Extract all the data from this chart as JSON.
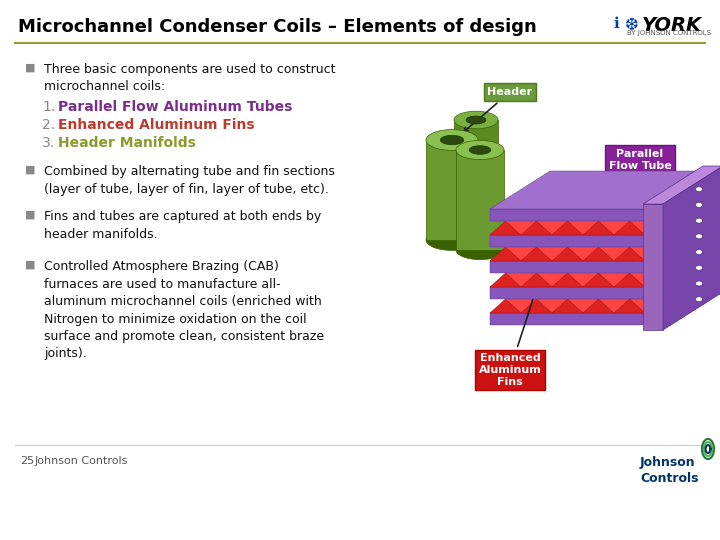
{
  "title": "Microchannel Condenser Coils – Elements of design",
  "title_fontsize": 13,
  "title_color": "#000000",
  "separator_color": "#9B9B3A",
  "background_color": "#FFFFFF",
  "bullet_color": "#888888",
  "bullet_char": "■",
  "bullet1": "Three basic components are used to construct\nmicrochannel coils:",
  "numbered_items": [
    {
      "num": "1.",
      "text": "Parallel Flow Aluminum Tubes",
      "color": "#7B2D8B"
    },
    {
      "num": "2.",
      "text": "Enhanced Aluminum Fins",
      "color": "#C0392B"
    },
    {
      "num": "3.",
      "text": "Header Manifolds",
      "color": "#8B9B2A"
    }
  ],
  "bullet2": "Combined by alternating tube and fin sections\n(layer of tube, layer of fin, layer of tube, etc).",
  "bullet3": "Fins and tubes are captured at both ends by\nheader manifolds.",
  "bullet4": "Controlled Atmosphere Brazing (CAB)\nfurnaces are used to manufacture all-\naluminum microchannel coils (enriched with\nNitrogen to minimize oxidation on the coil\nsurface and promote clean, consistent braze\njoints).",
  "footer_num": "25",
  "footer_text": "Johnson Controls",
  "footer_color": "#555555",
  "label_header_bg": "#6A9A4C",
  "label_parallel_bg": "#8B2D8B",
  "label_enhanced_bg": "#CC1111",
  "label_text_color": "#FFFFFF",
  "body_fontsize": 9,
  "footer_fontsize": 8,
  "numbered_fontsize": 10,
  "tube_color_top": "#7AB040",
  "tube_color_side": "#5A8A20",
  "tube_color_dark": "#3A6A00",
  "fin_color": "#CC2222",
  "fin_color_dark": "#992222",
  "manifold_top": "#9966BB",
  "manifold_side": "#7744AA",
  "manifold_dark": "#553388",
  "york_color": "#000000",
  "jc_blue": "#003366"
}
